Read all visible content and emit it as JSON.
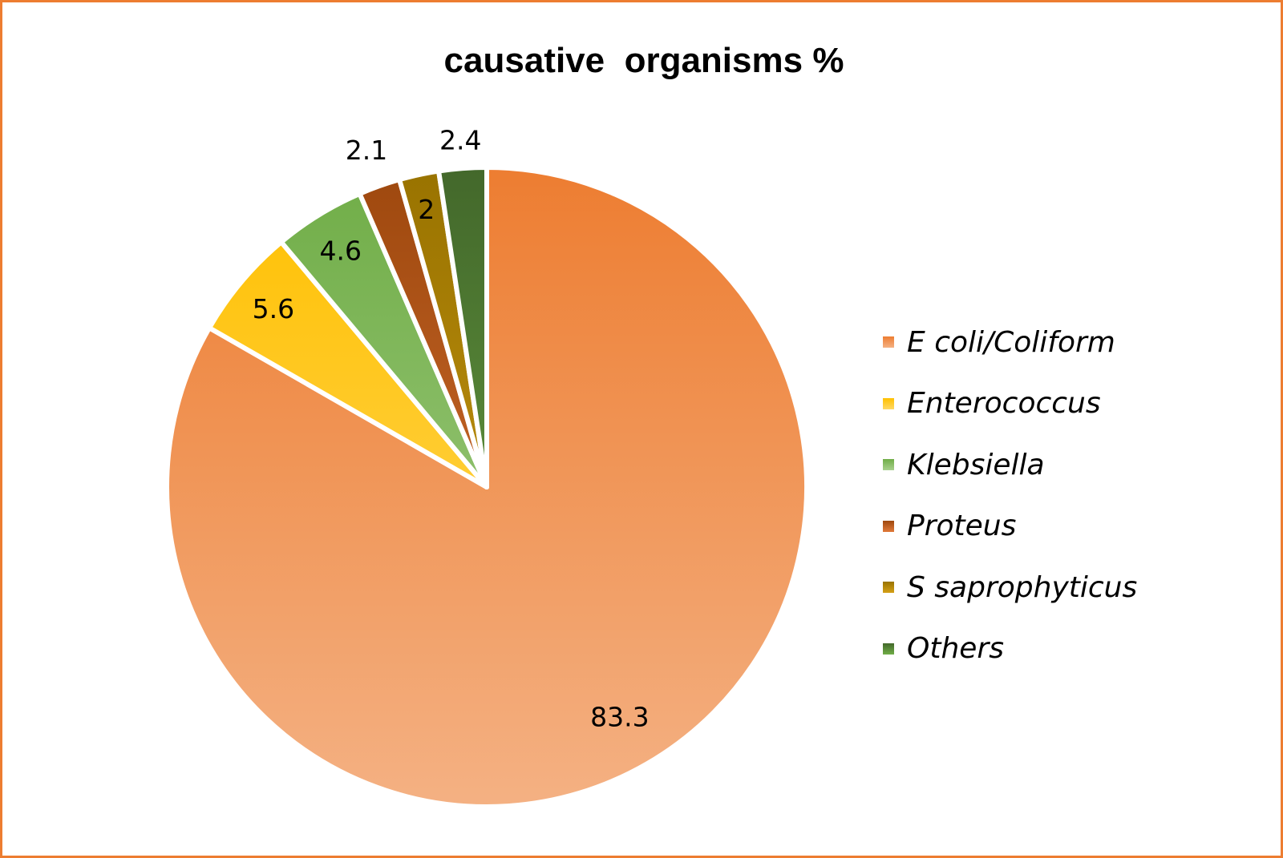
{
  "chart_data": {
    "type": "pie",
    "title": "causative  organisms %",
    "categories": [
      "E coli/Coliform",
      "Enterococcus",
      "Klebsiella",
      "Proteus",
      "S saprophyticus",
      "Others"
    ],
    "values": [
      83.3,
      5.6,
      4.6,
      2.1,
      2,
      2.4
    ],
    "data_labels": [
      "83.3",
      "5.6",
      "4.6",
      "2.1",
      "2",
      "2.4"
    ],
    "colors": [
      [
        "#ED7D31",
        "#F4B183"
      ],
      [
        "#FFC000",
        "#FFD966"
      ],
      [
        "#70AD47",
        "#A9D18E"
      ],
      [
        "#9E480E",
        "#E07A3A"
      ],
      [
        "#997300",
        "#D4A017"
      ],
      [
        "#43682B",
        "#70AD47"
      ]
    ],
    "start_angle": "12 o'clock, clockwise",
    "legend_position": "right"
  }
}
